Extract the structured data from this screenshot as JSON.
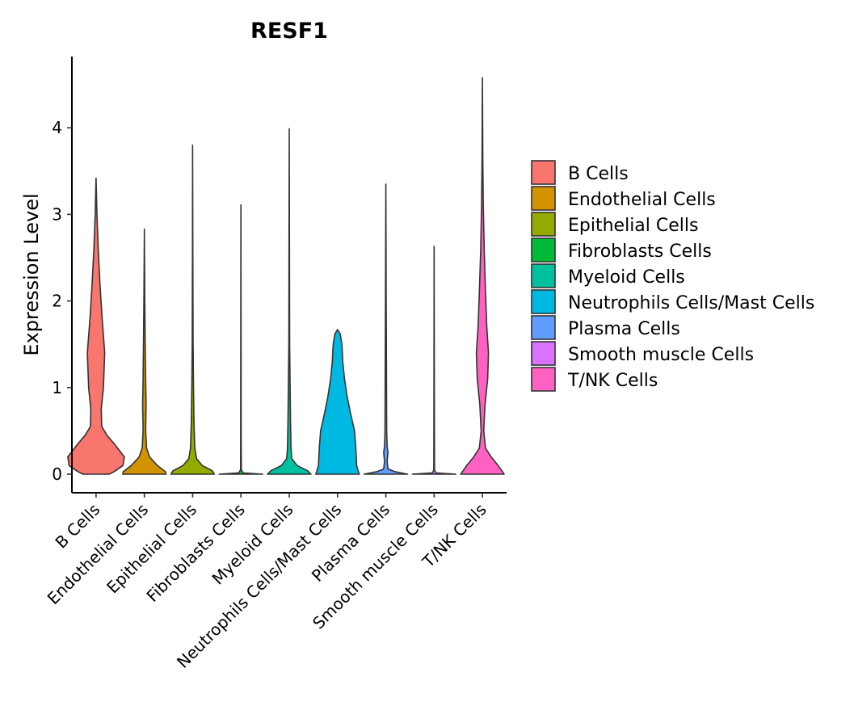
{
  "chart_data": {
    "type": "violin",
    "title": "RESF1",
    "xlabel": "",
    "ylabel": "Expression Level",
    "ylim": [
      -0.22,
      4.82
    ],
    "yticks": [
      0,
      1,
      2,
      3,
      4
    ],
    "grid": false,
    "legend_position": "right",
    "categories": [
      "B Cells",
      "Endothelial Cells",
      "Epithelial Cells",
      "Fibroblasts Cells",
      "Myeloid Cells",
      "Neutrophils Cells/Mast Cells",
      "Plasma Cells",
      "Smooth muscle Cells",
      "T/NK Cells"
    ],
    "colors": [
      "#F8766D",
      "#D39200",
      "#93AA00",
      "#00BA38",
      "#00C19F",
      "#00B9E3",
      "#619CFF",
      "#DB72FB",
      "#FF61C3"
    ],
    "series": [
      {
        "name": "B Cells",
        "max": 3.42,
        "profile": [
          [
            0,
            0.3
          ],
          [
            0.03,
            0.42
          ],
          [
            0.1,
            0.62
          ],
          [
            0.2,
            0.65
          ],
          [
            0.35,
            0.42
          ],
          [
            0.45,
            0.25
          ],
          [
            0.55,
            0.13
          ],
          [
            0.75,
            0.12
          ],
          [
            1.0,
            0.17
          ],
          [
            1.4,
            0.2
          ],
          [
            1.8,
            0.14
          ],
          [
            2.2,
            0.09
          ],
          [
            2.6,
            0.05
          ],
          [
            3.0,
            0.02
          ],
          [
            3.42,
            0
          ]
        ]
      },
      {
        "name": "Endothelial Cells",
        "max": 2.83,
        "profile": [
          [
            0,
            0.5
          ],
          [
            0.03,
            0.48
          ],
          [
            0.1,
            0.3
          ],
          [
            0.2,
            0.12
          ],
          [
            0.3,
            0.05
          ],
          [
            0.5,
            0.03
          ],
          [
            0.8,
            0.04
          ],
          [
            1.1,
            0.03
          ],
          [
            1.5,
            0.02
          ],
          [
            2.0,
            0.01
          ],
          [
            2.83,
            0
          ]
        ]
      },
      {
        "name": "Epithelial Cells",
        "max": 3.8,
        "profile": [
          [
            0,
            0.5
          ],
          [
            0.04,
            0.45
          ],
          [
            0.1,
            0.22
          ],
          [
            0.18,
            0.09
          ],
          [
            0.3,
            0.05
          ],
          [
            0.6,
            0.03
          ],
          [
            1.0,
            0.02
          ],
          [
            1.5,
            0.01
          ],
          [
            2.5,
            0.005
          ],
          [
            3.8,
            0
          ]
        ]
      },
      {
        "name": "Fibroblasts Cells",
        "max": 3.11,
        "profile": [
          [
            0,
            0.5
          ],
          [
            0.015,
            0.05
          ],
          [
            0.05,
            0.008
          ],
          [
            0.5,
            0.006
          ],
          [
            1.5,
            0.004
          ],
          [
            3.11,
            0
          ]
        ]
      },
      {
        "name": "Myeloid Cells",
        "max": 3.99,
        "profile": [
          [
            0,
            0.5
          ],
          [
            0.04,
            0.42
          ],
          [
            0.1,
            0.18
          ],
          [
            0.18,
            0.06
          ],
          [
            0.3,
            0.04
          ],
          [
            0.6,
            0.03
          ],
          [
            1.0,
            0.02
          ],
          [
            1.5,
            0.01
          ],
          [
            2.5,
            0.005
          ],
          [
            3.99,
            0
          ]
        ]
      },
      {
        "name": "Neutrophils Cells/Mast Cells",
        "max": 1.67,
        "profile": [
          [
            0,
            0.5
          ],
          [
            0.03,
            0.48
          ],
          [
            0.1,
            0.44
          ],
          [
            0.3,
            0.42
          ],
          [
            0.5,
            0.39
          ],
          [
            0.7,
            0.3
          ],
          [
            0.9,
            0.22
          ],
          [
            1.1,
            0.16
          ],
          [
            1.3,
            0.12
          ],
          [
            1.5,
            0.1
          ],
          [
            1.62,
            0.06
          ],
          [
            1.67,
            0
          ]
        ]
      },
      {
        "name": "Plasma Cells",
        "max": 3.35,
        "profile": [
          [
            0,
            0.5
          ],
          [
            0.03,
            0.2
          ],
          [
            0.06,
            0.05
          ],
          [
            0.15,
            0.03
          ],
          [
            0.25,
            0.05
          ],
          [
            0.32,
            0.03
          ],
          [
            0.5,
            0.02
          ],
          [
            1.0,
            0.015
          ],
          [
            2.0,
            0.008
          ],
          [
            3.35,
            0
          ]
        ]
      },
      {
        "name": "Smooth muscle Cells",
        "max": 2.63,
        "profile": [
          [
            0,
            0.5
          ],
          [
            0.015,
            0.04
          ],
          [
            0.05,
            0.008
          ],
          [
            1.0,
            0.005
          ],
          [
            2.63,
            0
          ]
        ]
      },
      {
        "name": "T/NK Cells",
        "max": 4.58,
        "profile": [
          [
            0,
            0.5
          ],
          [
            0.03,
            0.46
          ],
          [
            0.1,
            0.36
          ],
          [
            0.2,
            0.2
          ],
          [
            0.3,
            0.07
          ],
          [
            0.5,
            0.03
          ],
          [
            0.8,
            0.06
          ],
          [
            1.1,
            0.12
          ],
          [
            1.4,
            0.14
          ],
          [
            1.7,
            0.1
          ],
          [
            2.1,
            0.07
          ],
          [
            2.6,
            0.04
          ],
          [
            3.1,
            0.02
          ],
          [
            3.6,
            0.01
          ],
          [
            4.58,
            0
          ]
        ]
      }
    ]
  }
}
